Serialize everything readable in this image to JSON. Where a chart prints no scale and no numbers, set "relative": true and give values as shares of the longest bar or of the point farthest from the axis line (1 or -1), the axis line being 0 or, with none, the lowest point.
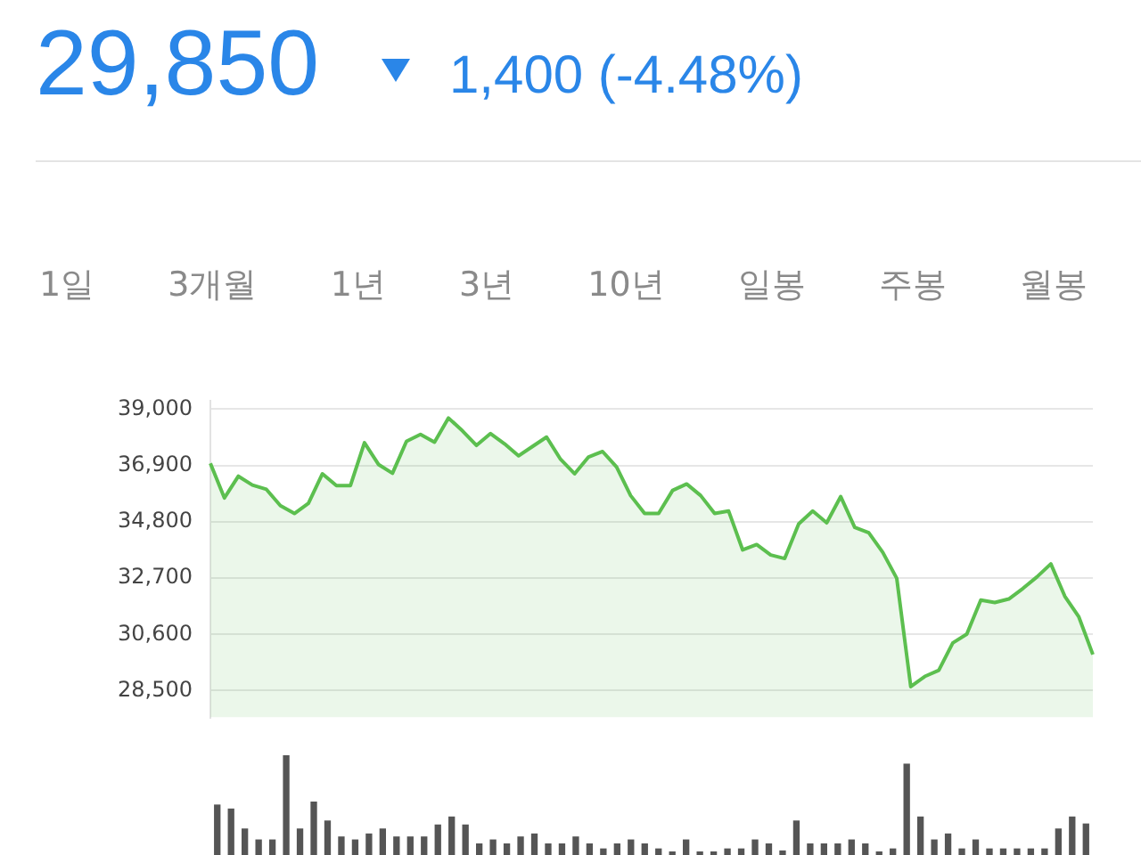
{
  "chart_data": [
    {
      "type": "area",
      "title": "29,850",
      "subtitle": "1,400 (-4.48%)",
      "annotations": [
        "1일",
        "3개월",
        "1년",
        "3년",
        "10년",
        "일봉",
        "주봉",
        "월봉"
      ],
      "categories": [
        null,
        null,
        null,
        null,
        null,
        null,
        null,
        null,
        null,
        null,
        null,
        null,
        null,
        null,
        null,
        null,
        null,
        null,
        null,
        null,
        null,
        null,
        null,
        null,
        null,
        null,
        null,
        null,
        null,
        null,
        null,
        null,
        null,
        null,
        null,
        null,
        null,
        null,
        null,
        null,
        null,
        null,
        null,
        null,
        null,
        null,
        null,
        null,
        null,
        null,
        null,
        null,
        null,
        null,
        null,
        null,
        null,
        null,
        null,
        null,
        null,
        null,
        null,
        null
      ],
      "series": [
        {
          "color": "#5cbf4f",
          "values": [
            36980,
            35690,
            36500,
            36170,
            36010,
            35400,
            35110,
            35490,
            36590,
            36150,
            36150,
            37750,
            36940,
            36610,
            37800,
            38060,
            37770,
            38670,
            38190,
            37650,
            38090,
            37710,
            37260,
            37610,
            37960,
            37130,
            36590,
            37220,
            37420,
            36840,
            35780,
            35110,
            35110,
            35970,
            36210,
            35780,
            35110,
            35200,
            33750,
            33950,
            33560,
            33430,
            34720,
            35200,
            34760,
            35740,
            34590,
            34390,
            33660,
            32690,
            28650,
            29030,
            29260,
            30280,
            30610,
            31880,
            31790,
            31920,
            32310,
            32740,
            33230,
            32020,
            31250,
            29850
          ]
        }
      ],
      "ylim": [
        27500,
        39300
      ],
      "yticks": [
        {
          "value": 28500,
          "label": "28,500"
        },
        {
          "value": 30600,
          "label": "30,600"
        },
        {
          "value": 32700,
          "label": "32,700"
        },
        {
          "value": 34800,
          "label": "34,800"
        },
        {
          "value": 36900,
          "label": "36,900"
        },
        {
          "value": 39000,
          "label": "39,000"
        }
      ],
      "grid": "y",
      "tick_labels": "y",
      "legend": false
    },
    {
      "type": "bar",
      "relative": true,
      "tick_labels": false,
      "legend": false,
      "categories": [
        null,
        null,
        null,
        null,
        null,
        null,
        null,
        null,
        null,
        null,
        null,
        null,
        null,
        null,
        null,
        null,
        null,
        null,
        null,
        null,
        null,
        null,
        null,
        null,
        null,
        null,
        null,
        null,
        null,
        null,
        null,
        null,
        null,
        null,
        null,
        null,
        null,
        null,
        null,
        null,
        null,
        null,
        null,
        null,
        null,
        null,
        null,
        null,
        null,
        null,
        null,
        null,
        null,
        null,
        null,
        null,
        null,
        null,
        null,
        null,
        null,
        null,
        null,
        null
      ],
      "series": [
        {
          "color": "#555555",
          "values": [
            0.5,
            0.46,
            0.26,
            0.15,
            0.15,
            1,
            0.26,
            0.53,
            0.34,
            0.18,
            0.15,
            0.21,
            0.26,
            0.18,
            0.18,
            0.18,
            0.3,
            0.38,
            0.3,
            0.11,
            0.15,
            0.11,
            0.18,
            0.21,
            0.11,
            0.11,
            0.18,
            0.11,
            0.06,
            0.11,
            0.15,
            0.11,
            0.06,
            0.03,
            0.15,
            0.03,
            0.03,
            0.06,
            0.06,
            0.15,
            0.11,
            0.04,
            0.34,
            0.11,
            0.11,
            0.11,
            0.15,
            0.11,
            0.03,
            0.06,
            0.91,
            0.38,
            0.15,
            0.21,
            0.06,
            0.15,
            0.06,
            0.06,
            0.06,
            0.06,
            0.06,
            0.26,
            0.38,
            0.31
          ]
        }
      ]
    }
  ]
}
